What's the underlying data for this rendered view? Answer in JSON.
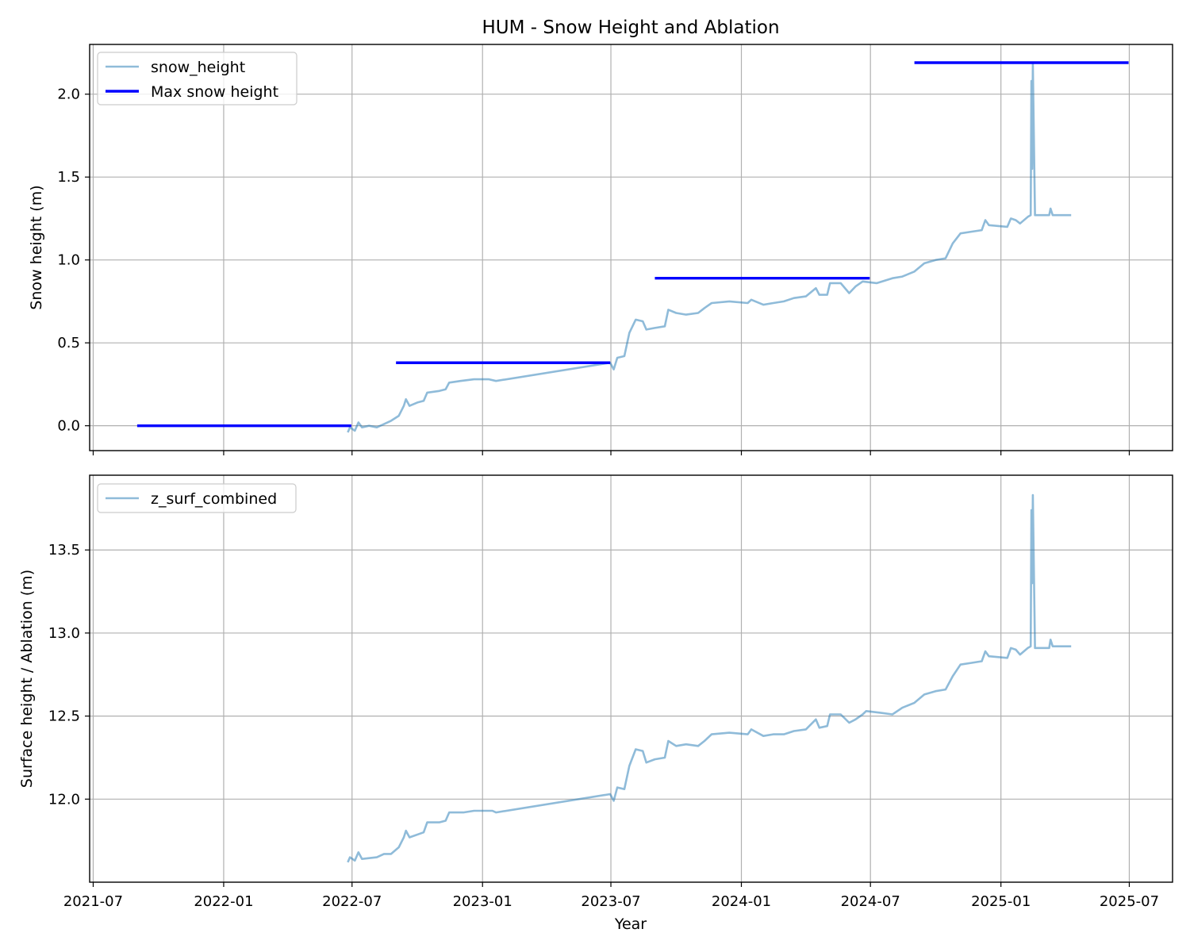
{
  "figure": {
    "title": "HUM - Snow Height and Ablation",
    "xlabel": "Year"
  },
  "colors": {
    "series_light": "#1f77b4",
    "max_line": "#0000ff",
    "grid": "#b0b0b0"
  },
  "chart_data": [
    {
      "type": "line",
      "ylabel": "Snow height (m)",
      "ylim": [
        -0.15,
        2.3
      ],
      "xlim": [
        "2021-06-26",
        "2025-08-31"
      ],
      "x_ticks": [
        "2021-07",
        "2022-01",
        "2022-07",
        "2023-01",
        "2023-07",
        "2024-01",
        "2024-07",
        "2025-01",
        "2025-07"
      ],
      "y_ticks": [
        0.0,
        0.5,
        1.0,
        1.5,
        2.0
      ],
      "y_tick_labels": [
        "0.0",
        "0.5",
        "1.0",
        "1.5",
        "2.0"
      ],
      "grid": true,
      "legend_position": "upper-left",
      "series": [
        {
          "name": "snow_height",
          "style": "light-line",
          "points": [
            [
              "2022-06-25",
              -0.04
            ],
            [
              "2022-06-28",
              -0.01
            ],
            [
              "2022-07-05",
              -0.03
            ],
            [
              "2022-07-10",
              0.02
            ],
            [
              "2022-07-15",
              -0.01
            ],
            [
              "2022-07-25",
              0.0
            ],
            [
              "2022-08-05",
              -0.01
            ],
            [
              "2022-08-15",
              0.01
            ],
            [
              "2022-08-25",
              0.03
            ],
            [
              "2022-09-05",
              0.06
            ],
            [
              "2022-09-12",
              0.12
            ],
            [
              "2022-09-15",
              0.16
            ],
            [
              "2022-09-20",
              0.12
            ],
            [
              "2022-10-01",
              0.14
            ],
            [
              "2022-10-10",
              0.15
            ],
            [
              "2022-10-15",
              0.2
            ],
            [
              "2022-11-01",
              0.21
            ],
            [
              "2022-11-10",
              0.22
            ],
            [
              "2022-11-15",
              0.26
            ],
            [
              "2022-12-01",
              0.27
            ],
            [
              "2022-12-20",
              0.28
            ],
            [
              "2023-01-10",
              0.28
            ],
            [
              "2023-01-20",
              0.27
            ],
            [
              "2023-06-30",
              0.38
            ],
            [
              "2023-07-05",
              0.34
            ],
            [
              "2023-07-10",
              0.41
            ],
            [
              "2023-07-20",
              0.42
            ],
            [
              "2023-07-27",
              0.56
            ],
            [
              "2023-08-05",
              0.64
            ],
            [
              "2023-08-15",
              0.63
            ],
            [
              "2023-08-20",
              0.58
            ],
            [
              "2023-09-01",
              0.59
            ],
            [
              "2023-09-15",
              0.6
            ],
            [
              "2023-09-20",
              0.7
            ],
            [
              "2023-10-01",
              0.68
            ],
            [
              "2023-10-15",
              0.67
            ],
            [
              "2023-11-01",
              0.68
            ],
            [
              "2023-11-10",
              0.71
            ],
            [
              "2023-11-20",
              0.74
            ],
            [
              "2023-12-15",
              0.75
            ],
            [
              "2024-01-10",
              0.74
            ],
            [
              "2024-01-15",
              0.76
            ],
            [
              "2024-02-01",
              0.73
            ],
            [
              "2024-02-15",
              0.74
            ],
            [
              "2024-03-01",
              0.75
            ],
            [
              "2024-03-15",
              0.77
            ],
            [
              "2024-04-01",
              0.78
            ],
            [
              "2024-04-15",
              0.83
            ],
            [
              "2024-04-20",
              0.79
            ],
            [
              "2024-05-01",
              0.79
            ],
            [
              "2024-05-05",
              0.86
            ],
            [
              "2024-05-20",
              0.86
            ],
            [
              "2024-06-01",
              0.8
            ],
            [
              "2024-06-10",
              0.84
            ],
            [
              "2024-06-20",
              0.87
            ],
            [
              "2024-07-10",
              0.86
            ],
            [
              "2024-08-01",
              0.89
            ],
            [
              "2024-08-15",
              0.9
            ],
            [
              "2024-09-01",
              0.93
            ],
            [
              "2024-09-15",
              0.98
            ],
            [
              "2024-10-01",
              1.0
            ],
            [
              "2024-10-15",
              1.01
            ],
            [
              "2024-10-25",
              1.1
            ],
            [
              "2024-11-05",
              1.16
            ],
            [
              "2024-11-20",
              1.17
            ],
            [
              "2024-12-05",
              1.18
            ],
            [
              "2024-12-10",
              1.24
            ],
            [
              "2024-12-15",
              1.21
            ],
            [
              "2025-01-10",
              1.2
            ],
            [
              "2025-01-15",
              1.25
            ],
            [
              "2025-01-22",
              1.24
            ],
            [
              "2025-01-28",
              1.22
            ],
            [
              "2025-02-08",
              1.26
            ],
            [
              "2025-02-12",
              1.27
            ],
            [
              "2025-02-13",
              2.08
            ],
            [
              "2025-02-14",
              1.55
            ],
            [
              "2025-02-15",
              2.18
            ],
            [
              "2025-02-18",
              1.27
            ],
            [
              "2025-03-10",
              1.27
            ],
            [
              "2025-03-12",
              1.31
            ],
            [
              "2025-03-15",
              1.27
            ],
            [
              "2025-04-10",
              1.27
            ]
          ]
        },
        {
          "name": "Max snow height",
          "style": "segments",
          "segments": [
            {
              "start": "2021-09-01",
              "end": "2022-06-30",
              "value": 0.0
            },
            {
              "start": "2022-09-01",
              "end": "2023-06-30",
              "value": 0.38
            },
            {
              "start": "2023-09-01",
              "end": "2024-06-30",
              "value": 0.89
            },
            {
              "start": "2024-09-01",
              "end": "2025-06-30",
              "value": 2.19
            }
          ]
        }
      ]
    },
    {
      "type": "line",
      "ylabel": "Surface height / Ablation (m)",
      "ylim": [
        11.5,
        13.95
      ],
      "xlim": [
        "2021-06-26",
        "2025-08-31"
      ],
      "x_ticks": [
        "2021-07",
        "2022-01",
        "2022-07",
        "2023-01",
        "2023-07",
        "2024-01",
        "2024-07",
        "2025-01",
        "2025-07"
      ],
      "y_ticks": [
        12.0,
        12.5,
        13.0,
        13.5
      ],
      "y_tick_labels": [
        "12.0",
        "12.5",
        "13.0",
        "13.5"
      ],
      "grid": true,
      "legend_position": "upper-left",
      "series": [
        {
          "name": "z_surf_combined",
          "style": "light-line",
          "points": [
            [
              "2022-06-25",
              11.62
            ],
            [
              "2022-06-28",
              11.65
            ],
            [
              "2022-07-05",
              11.63
            ],
            [
              "2022-07-10",
              11.68
            ],
            [
              "2022-07-15",
              11.64
            ],
            [
              "2022-08-05",
              11.65
            ],
            [
              "2022-08-15",
              11.67
            ],
            [
              "2022-08-25",
              11.67
            ],
            [
              "2022-09-05",
              11.71
            ],
            [
              "2022-09-12",
              11.77
            ],
            [
              "2022-09-15",
              11.81
            ],
            [
              "2022-09-20",
              11.77
            ],
            [
              "2022-10-10",
              11.8
            ],
            [
              "2022-10-15",
              11.86
            ],
            [
              "2022-11-01",
              11.86
            ],
            [
              "2022-11-10",
              11.87
            ],
            [
              "2022-11-15",
              11.92
            ],
            [
              "2022-12-05",
              11.92
            ],
            [
              "2022-12-20",
              11.93
            ],
            [
              "2023-01-15",
              11.93
            ],
            [
              "2023-01-20",
              11.92
            ],
            [
              "2023-06-30",
              12.03
            ],
            [
              "2023-07-05",
              11.99
            ],
            [
              "2023-07-10",
              12.07
            ],
            [
              "2023-07-20",
              12.06
            ],
            [
              "2023-07-27",
              12.2
            ],
            [
              "2023-08-05",
              12.3
            ],
            [
              "2023-08-15",
              12.29
            ],
            [
              "2023-08-20",
              12.22
            ],
            [
              "2023-09-01",
              12.24
            ],
            [
              "2023-09-15",
              12.25
            ],
            [
              "2023-09-20",
              12.35
            ],
            [
              "2023-10-01",
              12.32
            ],
            [
              "2023-10-15",
              12.33
            ],
            [
              "2023-11-01",
              12.32
            ],
            [
              "2023-11-10",
              12.35
            ],
            [
              "2023-11-20",
              12.39
            ],
            [
              "2023-12-15",
              12.4
            ],
            [
              "2024-01-10",
              12.39
            ],
            [
              "2024-01-15",
              12.42
            ],
            [
              "2024-02-01",
              12.38
            ],
            [
              "2024-02-15",
              12.39
            ],
            [
              "2024-03-01",
              12.39
            ],
            [
              "2024-03-15",
              12.41
            ],
            [
              "2024-04-01",
              12.42
            ],
            [
              "2024-04-15",
              12.48
            ],
            [
              "2024-04-20",
              12.43
            ],
            [
              "2024-05-01",
              12.44
            ],
            [
              "2024-05-05",
              12.51
            ],
            [
              "2024-05-20",
              12.51
            ],
            [
              "2024-06-01",
              12.46
            ],
            [
              "2024-06-10",
              12.48
            ],
            [
              "2024-06-20",
              12.51
            ],
            [
              "2024-06-25",
              12.53
            ],
            [
              "2024-07-15",
              12.52
            ],
            [
              "2024-08-01",
              12.51
            ],
            [
              "2024-08-15",
              12.55
            ],
            [
              "2024-09-01",
              12.58
            ],
            [
              "2024-09-15",
              12.63
            ],
            [
              "2024-10-01",
              12.65
            ],
            [
              "2024-10-15",
              12.66
            ],
            [
              "2024-10-25",
              12.74
            ],
            [
              "2024-11-05",
              12.81
            ],
            [
              "2024-11-20",
              12.82
            ],
            [
              "2024-12-05",
              12.83
            ],
            [
              "2024-12-10",
              12.89
            ],
            [
              "2024-12-15",
              12.86
            ],
            [
              "2025-01-10",
              12.85
            ],
            [
              "2025-01-15",
              12.91
            ],
            [
              "2025-01-22",
              12.9
            ],
            [
              "2025-01-28",
              12.87
            ],
            [
              "2025-02-08",
              12.91
            ],
            [
              "2025-02-12",
              12.92
            ],
            [
              "2025-02-13",
              13.74
            ],
            [
              "2025-02-14",
              13.3
            ],
            [
              "2025-02-15",
              13.83
            ],
            [
              "2025-02-18",
              12.91
            ],
            [
              "2025-03-10",
              12.91
            ],
            [
              "2025-03-12",
              12.96
            ],
            [
              "2025-03-15",
              12.92
            ],
            [
              "2025-04-10",
              12.92
            ]
          ]
        }
      ]
    }
  ]
}
